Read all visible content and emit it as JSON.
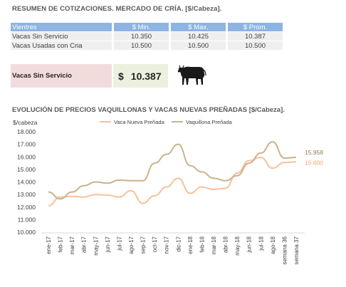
{
  "header": {
    "title": "RESUMEN DE COTIZACIONES. MERCADO DE CRÍA. [$/Cabeza]."
  },
  "table": {
    "columns": [
      "Vientres",
      "$ Min.",
      "$ Max.",
      "$ Prom."
    ],
    "rows": [
      [
        "Vacas Sin Servicio",
        "10.350",
        "10.425",
        "10.387"
      ],
      [
        "Vacas Usadas con Cria",
        "10.500",
        "10.500",
        "10.500"
      ]
    ]
  },
  "summary": {
    "label": "Vacas Sin Servicio",
    "currency": "$",
    "value": "10.387"
  },
  "icons": {
    "cow": "cow-icon"
  },
  "chart_title": "EVOLUCIÓN DE PRECIOS VAQUILLONAS Y VACAS NUEVAS PREÑADAS [$/Cabeza].",
  "chart_data": {
    "type": "line",
    "ylabel": "$/cabeza",
    "ylim": [
      10000,
      18000
    ],
    "ytick_labels": [
      "10.000",
      "11.000",
      "12.000",
      "13.000",
      "14.000",
      "15.000",
      "16.000",
      "17.000",
      "18.000"
    ],
    "categories": [
      "ene-17",
      "feb-17",
      "mar-17",
      "abr-17",
      "may-17",
      "jun-17",
      "jul-17",
      "ago-17",
      "sep-17",
      "oct-17",
      "nov-17",
      "dic-17",
      "ene-18",
      "feb-18",
      "mar-18",
      "abr-18",
      "may-18",
      "jun-18",
      "jul-18",
      "ago-18",
      "semana 36",
      "semana 37"
    ],
    "series": [
      {
        "name": "Vaca Nueva Preñada",
        "color": "#f9c09a",
        "values": [
          12100,
          12800,
          12850,
          12800,
          13000,
          12950,
          12800,
          13300,
          12300,
          12900,
          13600,
          14300,
          13100,
          13600,
          13400,
          13500,
          14700,
          15700,
          15950,
          15100,
          15550,
          15600
        ],
        "end_label": "15.600"
      },
      {
        "name": "Vaquillona Preñada",
        "color": "#c9b38d",
        "values": [
          13200,
          12650,
          13200,
          13700,
          14000,
          13900,
          14150,
          14100,
          14100,
          15500,
          16200,
          17000,
          15300,
          14800,
          14300,
          14100,
          14500,
          15500,
          16300,
          17200,
          15900,
          15958
        ],
        "end_label": "15.958"
      }
    ],
    "legend_position": "top",
    "grid": false
  }
}
